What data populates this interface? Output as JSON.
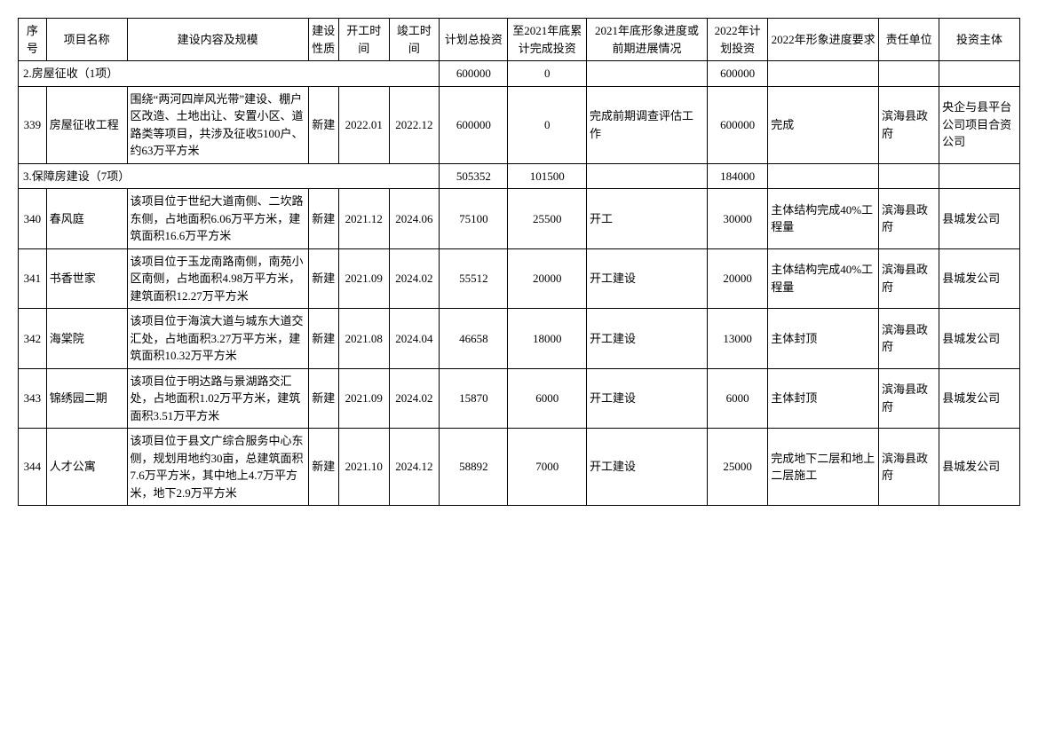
{
  "headers": {
    "seq": "序号",
    "name": "项目名称",
    "content": "建设内容及规模",
    "nature": "建设性质",
    "start": "开工时间",
    "end": "竣工时间",
    "total": "计划总投资",
    "cum": "至2021年底累计完成投资",
    "prog2021": "2021年底形象进度或前期进展情况",
    "plan2022": "2022年计划投资",
    "req2022": "2022年形象进度要求",
    "resp": "责任单位",
    "invest": "投资主体"
  },
  "sections": {
    "s1": {
      "label": "2.房屋征收（1项）",
      "total": "600000",
      "cum": "0",
      "plan2022": "600000"
    },
    "s2": {
      "label": "3.保障房建设（7项）",
      "total": "505352",
      "cum": "101500",
      "plan2022": "184000"
    }
  },
  "rows": {
    "r339": {
      "seq": "339",
      "name": "房屋征收工程",
      "content": "围绕“两河四岸风光带”建设、棚户区改造、土地出让、安置小区、道路类等项目，共涉及征收5100户、约63万平方米",
      "nature": "新建",
      "start": "2022.01",
      "end": "2022.12",
      "total": "600000",
      "cum": "0",
      "prog2021": "完成前期调查评估工作",
      "plan2022": "600000",
      "req2022": "完成",
      "resp": "滨海县政府",
      "invest": "央企与县平台公司项目合资公司"
    },
    "r340": {
      "seq": "340",
      "name": "春风庭",
      "content": "该项目位于世纪大道南侧、二坎路东侧，占地面积6.06万平方米，建筑面积16.6万平方米",
      "nature": "新建",
      "start": "2021.12",
      "end": "2024.06",
      "total": "75100",
      "cum": "25500",
      "prog2021": "开工",
      "plan2022": "30000",
      "req2022": "主体结构完成40%工程量",
      "resp": "滨海县政府",
      "invest": "县城发公司"
    },
    "r341": {
      "seq": "341",
      "name": "书香世家",
      "content": "该项目位于玉龙南路南侧，南苑小区南侧，占地面积4.98万平方米，建筑面积12.27万平方米",
      "nature": "新建",
      "start": "2021.09",
      "end": "2024.02",
      "total": "55512",
      "cum": "20000",
      "prog2021": "开工建设",
      "plan2022": "20000",
      "req2022": "主体结构完成40%工程量",
      "resp": "滨海县政府",
      "invest": "县城发公司"
    },
    "r342": {
      "seq": "342",
      "name": "海棠院",
      "content": "该项目位于海滨大道与城东大道交汇处，占地面积3.27万平方米，建筑面积10.32万平方米",
      "nature": "新建",
      "start": "2021.08",
      "end": "2024.04",
      "total": "46658",
      "cum": "18000",
      "prog2021": "开工建设",
      "plan2022": "13000",
      "req2022": "主体封顶",
      "resp": "滨海县政府",
      "invest": "县城发公司"
    },
    "r343": {
      "seq": "343",
      "name": "锦绣园二期",
      "content": "该项目位于明达路与景湖路交汇处，占地面积1.02万平方米，建筑面积3.51万平方米",
      "nature": "新建",
      "start": "2021.09",
      "end": "2024.02",
      "total": "15870",
      "cum": "6000",
      "prog2021": "开工建设",
      "plan2022": "6000",
      "req2022": "主体封顶",
      "resp": "滨海县政府",
      "invest": "县城发公司"
    },
    "r344": {
      "seq": "344",
      "name": "人才公寓",
      "content": "该项目位于县文广综合服务中心东侧，规划用地约30亩，总建筑面积7.6万平方米，其中地上4.7万平方米，地下2.9万平方米",
      "nature": "新建",
      "start": "2021.10",
      "end": "2024.12",
      "total": "58892",
      "cum": "7000",
      "prog2021": "开工建设",
      "plan2022": "25000",
      "req2022": "完成地下二层和地上二层施工",
      "resp": "滨海县政府",
      "invest": "县城发公司"
    }
  }
}
